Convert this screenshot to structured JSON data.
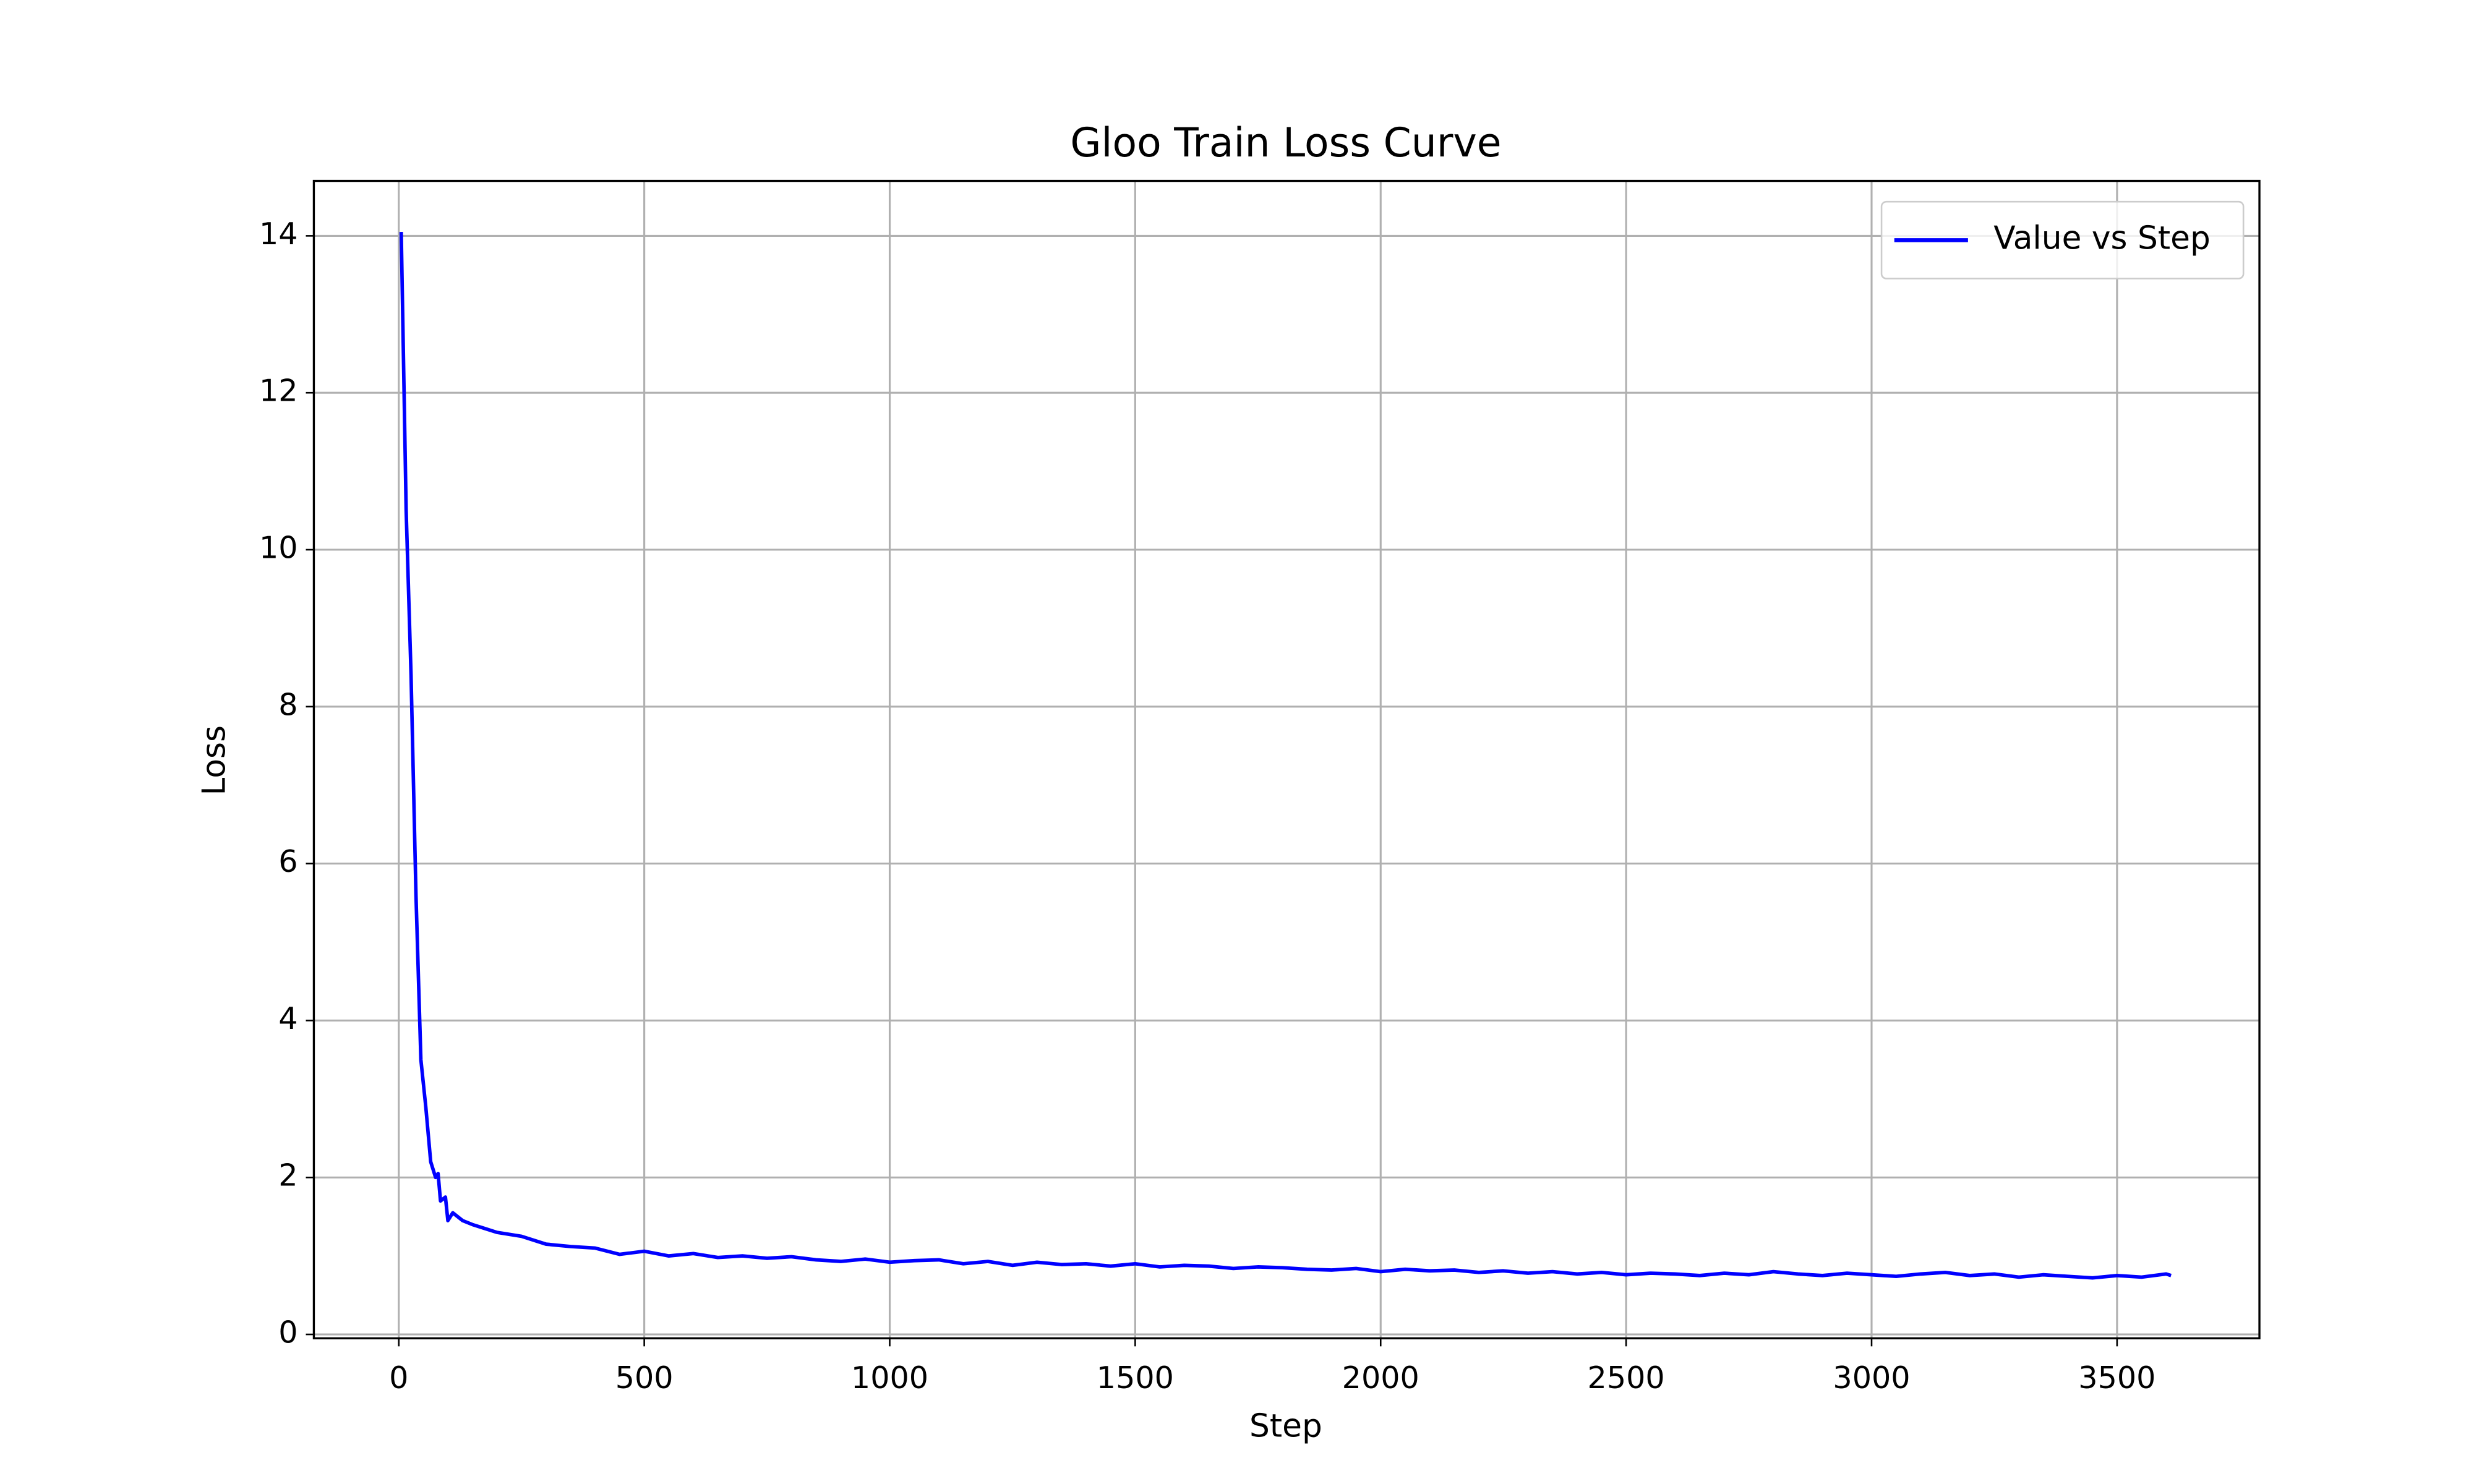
{
  "chart_data": {
    "type": "line",
    "title": "Gloo Train Loss Curve",
    "xlabel": "Step",
    "ylabel": "Loss",
    "x": [
      5,
      15,
      25,
      35,
      45,
      55,
      65,
      75,
      80,
      85,
      95,
      100,
      110,
      130,
      150,
      175,
      200,
      250,
      300,
      350,
      400,
      450,
      500,
      550,
      600,
      650,
      700,
      750,
      800,
      850,
      900,
      950,
      1000,
      1050,
      1100,
      1150,
      1200,
      1250,
      1300,
      1350,
      1400,
      1450,
      1500,
      1550,
      1600,
      1650,
      1700,
      1750,
      1800,
      1850,
      1900,
      1950,
      2000,
      2050,
      2100,
      2150,
      2200,
      2250,
      2300,
      2350,
      2400,
      2450,
      2500,
      2550,
      2600,
      2650,
      2700,
      2750,
      2800,
      2850,
      2900,
      2950,
      3000,
      3050,
      3100,
      3150,
      3200,
      3250,
      3300,
      3350,
      3400,
      3450,
      3500,
      3550,
      3600,
      3610
    ],
    "series": [
      {
        "name": "Value vs Step",
        "color": "#0000ff",
        "values": [
          14.05,
          10.5,
          8.4,
          5.6,
          3.5,
          2.9,
          2.2,
          2.0,
          2.05,
          1.7,
          1.75,
          1.45,
          1.55,
          1.45,
          1.4,
          1.35,
          1.3,
          1.25,
          1.15,
          1.12,
          1.1,
          1.02,
          1.06,
          1.0,
          1.03,
          0.98,
          1.0,
          0.97,
          0.99,
          0.95,
          0.93,
          0.96,
          0.92,
          0.94,
          0.95,
          0.9,
          0.93,
          0.88,
          0.92,
          0.89,
          0.9,
          0.87,
          0.9,
          0.86,
          0.88,
          0.87,
          0.84,
          0.86,
          0.85,
          0.83,
          0.82,
          0.84,
          0.8,
          0.83,
          0.81,
          0.82,
          0.79,
          0.81,
          0.78,
          0.8,
          0.77,
          0.79,
          0.76,
          0.78,
          0.77,
          0.75,
          0.78,
          0.76,
          0.8,
          0.77,
          0.75,
          0.78,
          0.76,
          0.74,
          0.77,
          0.79,
          0.75,
          0.77,
          0.73,
          0.76,
          0.74,
          0.72,
          0.75,
          0.73,
          0.77,
          0.75
        ]
      }
    ],
    "xlim": [
      -173,
      3790
    ],
    "ylim": [
      -0.05,
      14.7
    ],
    "xticks": [
      0,
      500,
      1000,
      1500,
      2000,
      2500,
      3000,
      3500
    ],
    "yticks": [
      0,
      2,
      4,
      6,
      8,
      10,
      12,
      14
    ],
    "grid": true,
    "legend": "upper right"
  }
}
